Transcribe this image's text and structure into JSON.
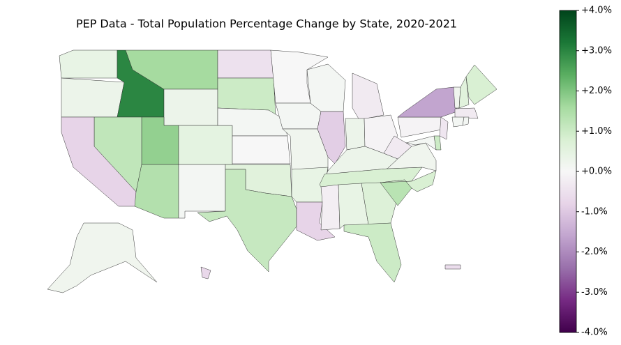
{
  "chart_data": {
    "type": "choropleth",
    "title": "PEP Data - Total Population Percentage Change by State, 2020-2021",
    "values": [
      0.4,
      0.3,
      3.0,
      1.6,
      0.3,
      1.8,
      1.2,
      -0.8,
      1.4,
      0.5,
      0.1,
      -0.5,
      1.0,
      0.1,
      0.0,
      0.6,
      1.1,
      0.0,
      0.1,
      0.2,
      0.4,
      -0.8,
      0.1,
      -0.9,
      -0.3,
      0.3,
      -0.1,
      0.3,
      0.8,
      -0.2,
      0.4,
      0.7,
      1.0,
      1.3,
      0.8,
      0.2,
      -0.3,
      -0.1,
      -1.6,
      0.2,
      0.6,
      0.8,
      -0.3,
      0.1,
      0.1,
      -0.4,
      1.0,
      0.1,
      0.2,
      -0.7,
      -0.6
    ],
    "colorbar": {
      "lim": [
        -4,
        4
      ],
      "colors": [
        "#40004b",
        "#762a83",
        "#9970ab",
        "#c2a5cf",
        "#e7d4e8",
        "#f7f7f7",
        "#d9f0d3",
        "#a6dba0",
        "#5aae61",
        "#1b7837",
        "#00441b"
      ],
      "ticks": [
        {
          "value": 4,
          "label": "+4.0%"
        },
        {
          "value": 3,
          "label": "+3.0%"
        },
        {
          "value": 2,
          "label": "+2.0%"
        },
        {
          "value": 1,
          "label": "+1.0%"
        },
        {
          "value": 0,
          "label": "+0.0%"
        },
        {
          "value": -1,
          "label": "-1.0%"
        },
        {
          "value": -2,
          "label": "-2.0%"
        },
        {
          "value": -3,
          "label": "-3.0%"
        },
        {
          "value": -4,
          "label": "-4.0%"
        }
      ]
    }
  }
}
